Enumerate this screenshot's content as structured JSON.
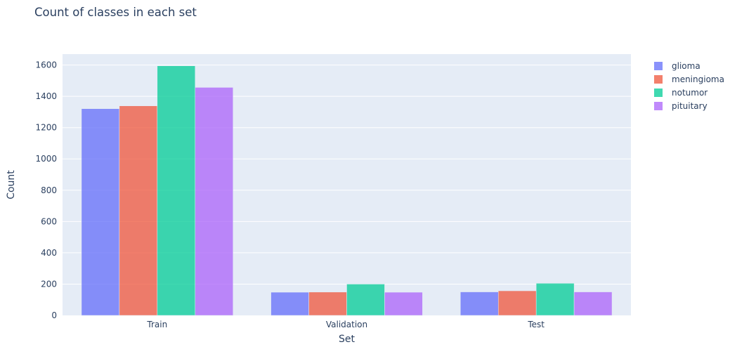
{
  "chart_data": {
    "type": "bar",
    "title": "Count of classes in each set",
    "xlabel": "Set",
    "ylabel": "Count",
    "categories": [
      "Train",
      "Validation",
      "Test"
    ],
    "series": [
      {
        "name": "glioma",
        "values": [
          1321,
          148,
          150
        ],
        "color": "#636efa"
      },
      {
        "name": "meningioma",
        "values": [
          1339,
          149,
          157
        ],
        "color": "#ef553b"
      },
      {
        "name": "notumor",
        "values": [
          1595,
          200,
          205
        ],
        "color": "#00cc96"
      },
      {
        "name": "pituitary",
        "values": [
          1457,
          148,
          150
        ],
        "color": "#ab63fa"
      }
    ],
    "yticks": [
      0,
      200,
      400,
      600,
      800,
      1000,
      1200,
      1400,
      1600
    ],
    "ylim": [
      0,
      1670
    ],
    "grid": true,
    "legend_position": "right",
    "plot_background": "#e5ecf6",
    "bar_opacity": 0.75
  }
}
